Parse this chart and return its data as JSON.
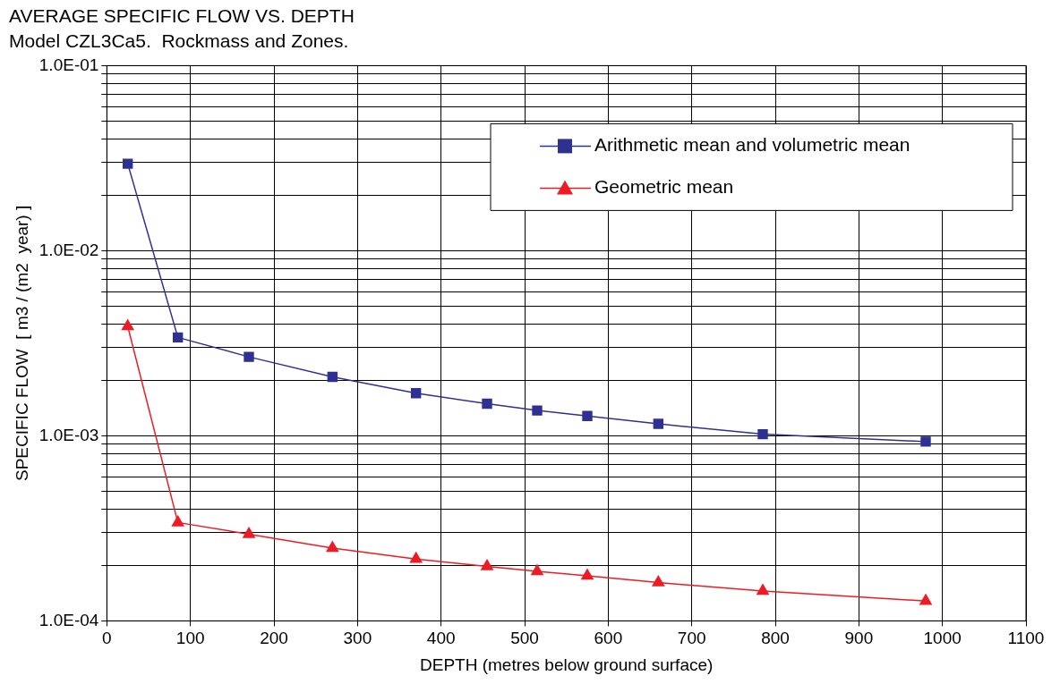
{
  "chart_data": {
    "type": "line",
    "title": "AVERAGE SPECIFIC FLOW VS. DEPTH",
    "subtitle": "Model CZL3Ca5.  Rockmass and Zones.",
    "xlabel": "DEPTH (metres below ground surface)",
    "ylabel": "SPECIFIC FLOW  [ m3 / (m2  year) ]",
    "x": [
      25,
      85,
      170,
      270,
      370,
      455,
      515,
      575,
      660,
      785,
      980
    ],
    "series": [
      {
        "name": "Arithmetic mean and volumetric mean",
        "color": "#2e3192",
        "marker": "square",
        "values": [
          0.0295,
          0.0034,
          0.00267,
          0.00208,
          0.0017,
          0.00149,
          0.00137,
          0.00128,
          0.00116,
          0.00102,
          0.00093
        ]
      },
      {
        "name": "Geometric mean",
        "color": "#ed1c24",
        "marker": "triangle",
        "values": [
          0.0039,
          0.00034,
          0.000294,
          0.000247,
          0.000216,
          0.000197,
          0.000185,
          0.000175,
          0.000161,
          0.000145,
          0.000128
        ]
      }
    ],
    "log": "y",
    "xlim": [
      0,
      1100
    ],
    "xticks": [
      0,
      100,
      200,
      300,
      400,
      500,
      600,
      700,
      800,
      900,
      1000,
      1100
    ],
    "ylim": [
      0.0001,
      0.1
    ],
    "yticks": [
      {
        "value": 0.0001,
        "label": "1.0E-04"
      },
      {
        "value": 0.0002,
        "label": null
      },
      {
        "value": 0.0003,
        "label": null
      },
      {
        "value": 0.0004,
        "label": null
      },
      {
        "value": 0.0005,
        "label": null
      },
      {
        "value": 0.0006,
        "label": null
      },
      {
        "value": 0.0007,
        "label": null
      },
      {
        "value": 0.0008,
        "label": null
      },
      {
        "value": 0.0009,
        "label": null
      },
      {
        "value": 0.001,
        "label": "1.0E-03"
      },
      {
        "value": 0.002,
        "label": null
      },
      {
        "value": 0.003,
        "label": null
      },
      {
        "value": 0.004,
        "label": null
      },
      {
        "value": 0.005,
        "label": null
      },
      {
        "value": 0.006,
        "label": null
      },
      {
        "value": 0.007,
        "label": null
      },
      {
        "value": 0.008,
        "label": null
      },
      {
        "value": 0.009,
        "label": null
      },
      {
        "value": 0.01,
        "label": "1.0E-02"
      },
      {
        "value": 0.02,
        "label": null
      },
      {
        "value": 0.03,
        "label": null
      },
      {
        "value": 0.04,
        "label": null
      },
      {
        "value": 0.05,
        "label": null
      },
      {
        "value": 0.06,
        "label": null
      },
      {
        "value": 0.07,
        "label": null
      },
      {
        "value": 0.08,
        "label": null
      },
      {
        "value": 0.09,
        "label": null
      },
      {
        "value": 0.1,
        "label": "1.0E-01"
      }
    ],
    "grid": true,
    "legend": "top right",
    "line_style": "solid"
  }
}
